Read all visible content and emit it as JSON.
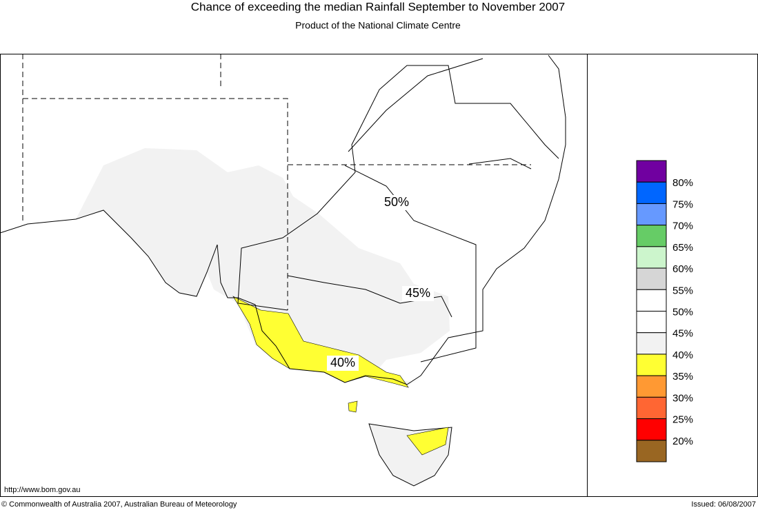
{
  "header": {
    "title": "Chance of exceeding the median Rainfall September to November 2007",
    "subtitle": "Product of the National Climate Centre"
  },
  "legend": {
    "labels": [
      "80%",
      "75%",
      "70%",
      "65%",
      "60%",
      "55%",
      "50%",
      "45%",
      "40%",
      "35%",
      "30%",
      "25%",
      "20%"
    ],
    "colors": [
      "#7000a0",
      "#0066ff",
      "#6699ff",
      "#66cc66",
      "#ccf5cc",
      "#d6d6d6",
      "#ffffff",
      "#ffffff",
      "#f2f2f2",
      "#ffff33",
      "#ff9933",
      "#ff6633",
      "#ff0000",
      "#996622"
    ]
  },
  "map": {
    "contour_labels": [
      "50%",
      "45%",
      "40%"
    ]
  },
  "footer": {
    "url": "http://www.bom.gov.au",
    "copyright": "© Commonwealth of Australia 2007, Australian Bureau of Meteorology",
    "issued": "Issued: 06/08/2007"
  }
}
